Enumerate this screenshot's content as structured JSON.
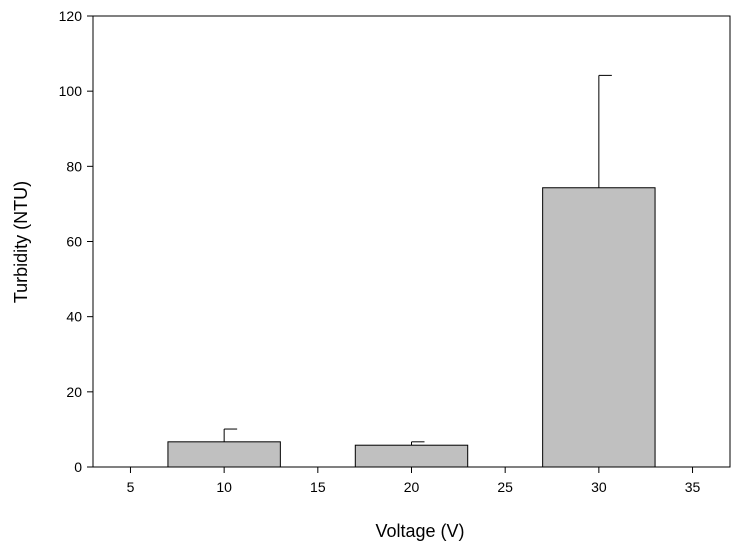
{
  "chart_data": {
    "type": "bar",
    "title": "",
    "xlabel": "Voltage (V)",
    "ylabel": "Turbidity (NTU)",
    "xlim": [
      3,
      37
    ],
    "ylim": [
      0,
      120
    ],
    "xticks": [
      5,
      10,
      15,
      20,
      25,
      30,
      35
    ],
    "yticks": [
      0,
      20,
      40,
      60,
      80,
      100,
      120
    ],
    "bar_width": 6,
    "x": [
      10,
      20,
      30
    ],
    "values": [
      6.7,
      5.8,
      74.3
    ],
    "error_upper": [
      3.4,
      0.9,
      29.9
    ],
    "grid": false,
    "legend": "none",
    "colors": {
      "bar_fill": "#c0c0c0",
      "bar_stroke": "#000000",
      "axis": "#000000"
    }
  }
}
